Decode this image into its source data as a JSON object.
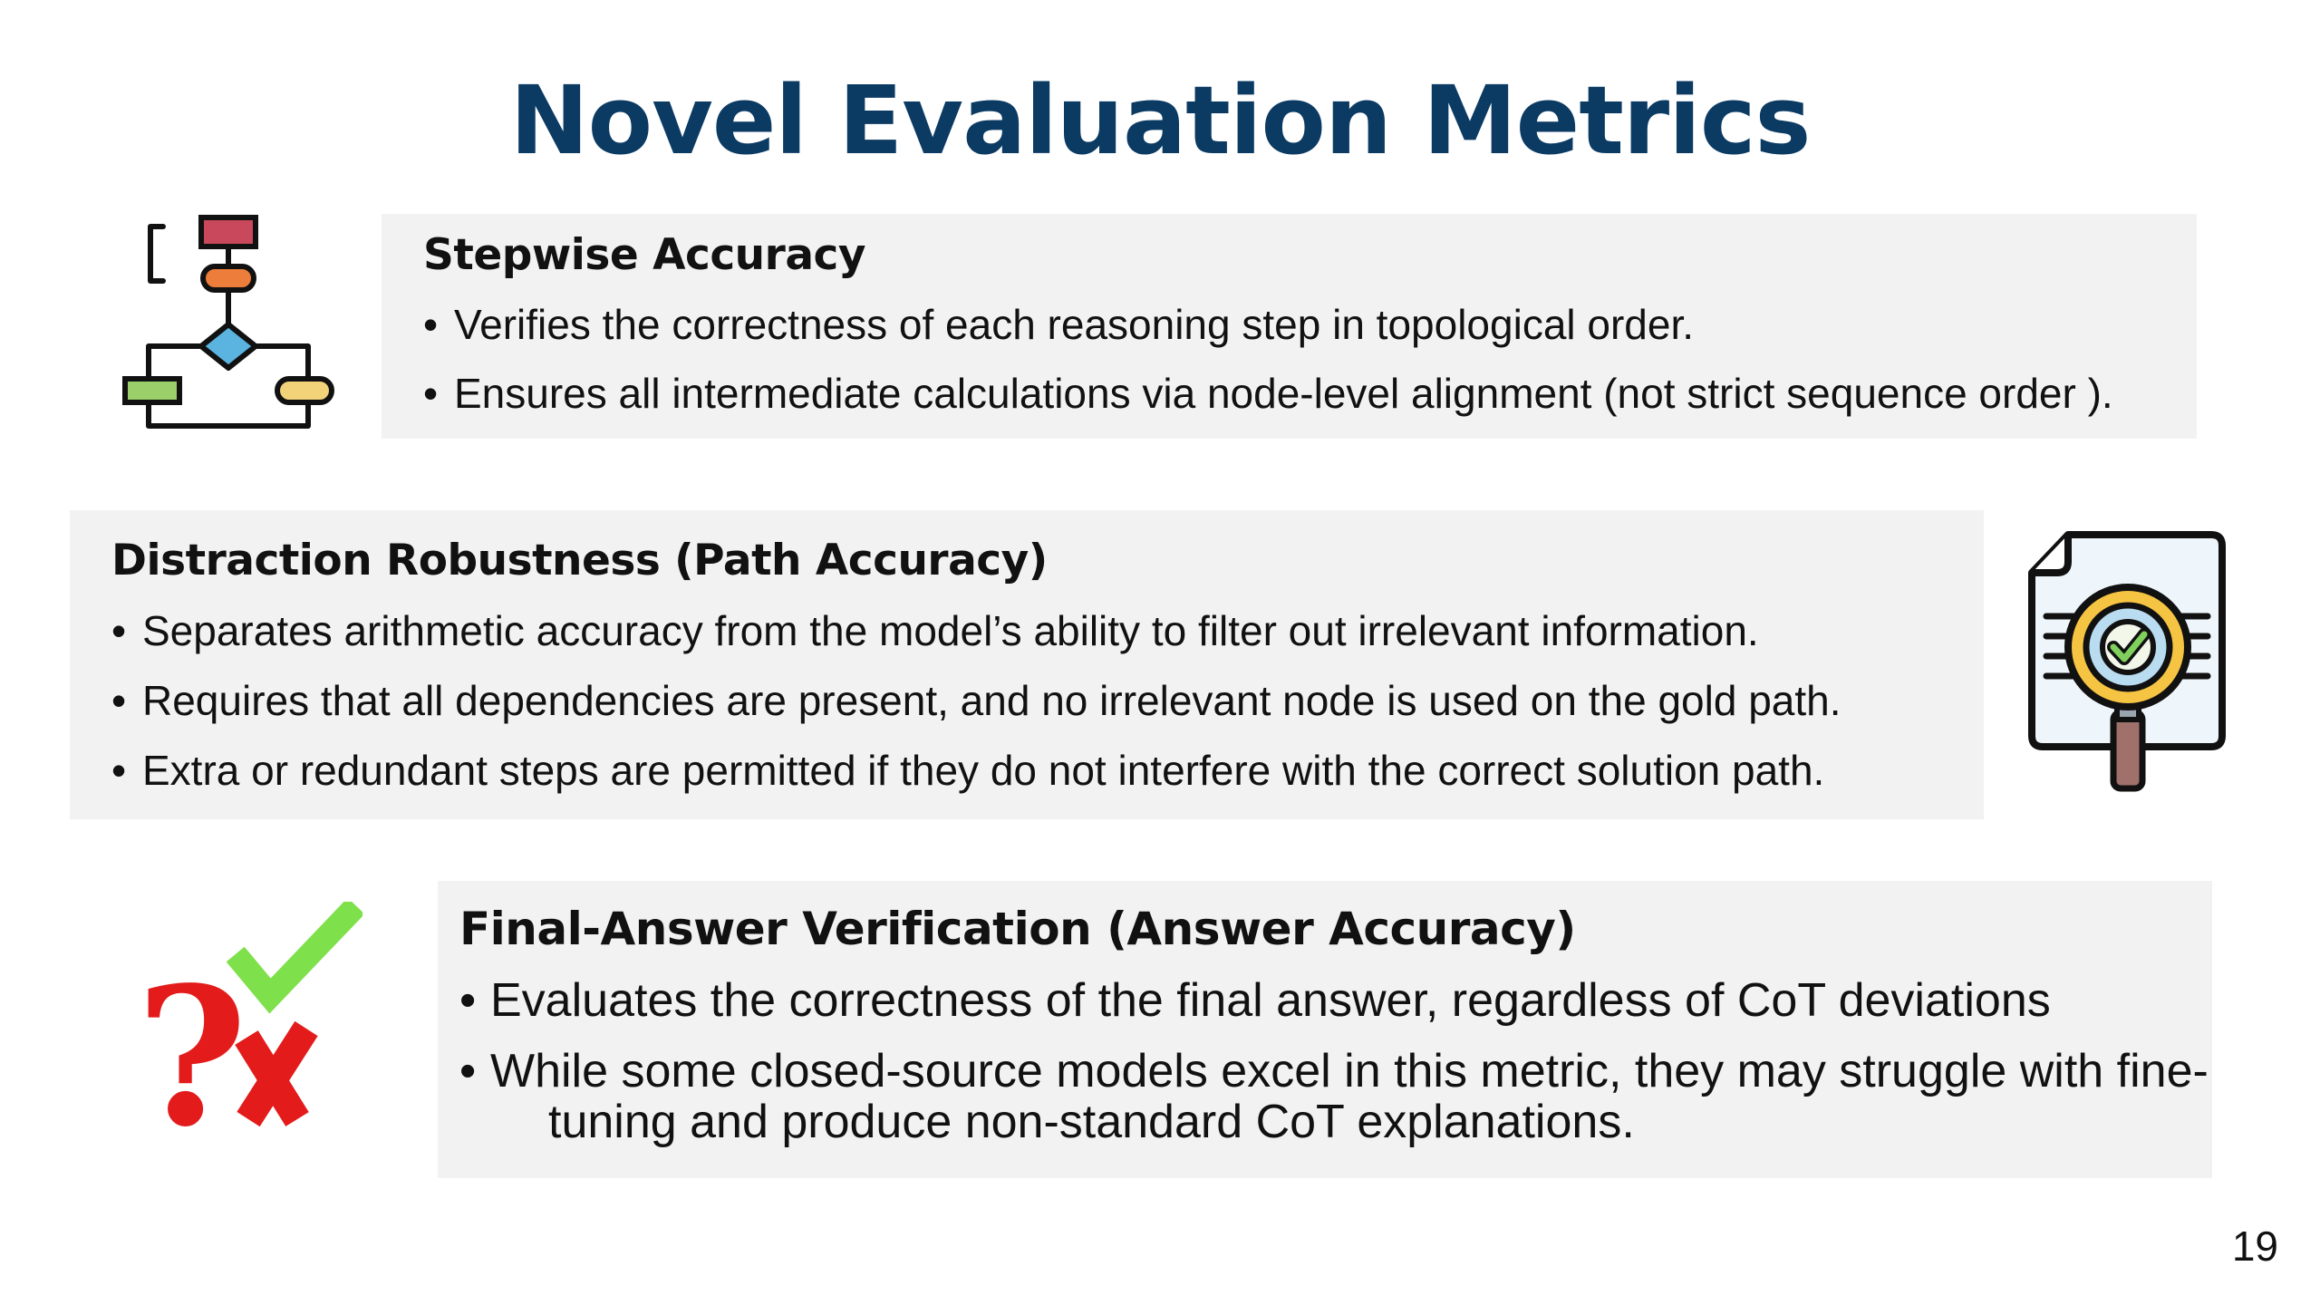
{
  "slide": {
    "title": "Novel Evaluation Metrics",
    "page_number": "19"
  },
  "sections": [
    {
      "heading": "Stepwise Accuracy",
      "icon": "flowchart-icon",
      "bullets": [
        "Verifies the correctness of each reasoning step in topological order.",
        "Ensures all intermediate calculations via node-level alignment (not strict sequence order )."
      ]
    },
    {
      "heading": "Distraction Robustness (Path Accuracy)",
      "icon": "document-magnifier-check-icon",
      "bullets": [
        "Separates arithmetic accuracy from the model’s ability to filter out irrelevant information.",
        "Requires that all dependencies are present, and no irrelevant node is used on the gold path.",
        "Extra or redundant steps are permitted if they do not interfere with the correct solution path."
      ]
    },
    {
      "heading": "Final-Answer Verification (Answer Accuracy)",
      "icon": "question-check-cross-icon",
      "bullets": [
        "Evaluates the correctness of the final answer, regardless of CoT deviations"
      ],
      "bullet2_line1": "While some closed-source models excel in this metric, they may struggle with fine-",
      "bullet2_line2": "tuning and produce non-standard CoT explanations."
    }
  ],
  "colors": {
    "title": "#0b3a63",
    "box_background": "#f2f2f2",
    "check_green": "#7ee04a",
    "cross_red": "#e31b1b"
  }
}
